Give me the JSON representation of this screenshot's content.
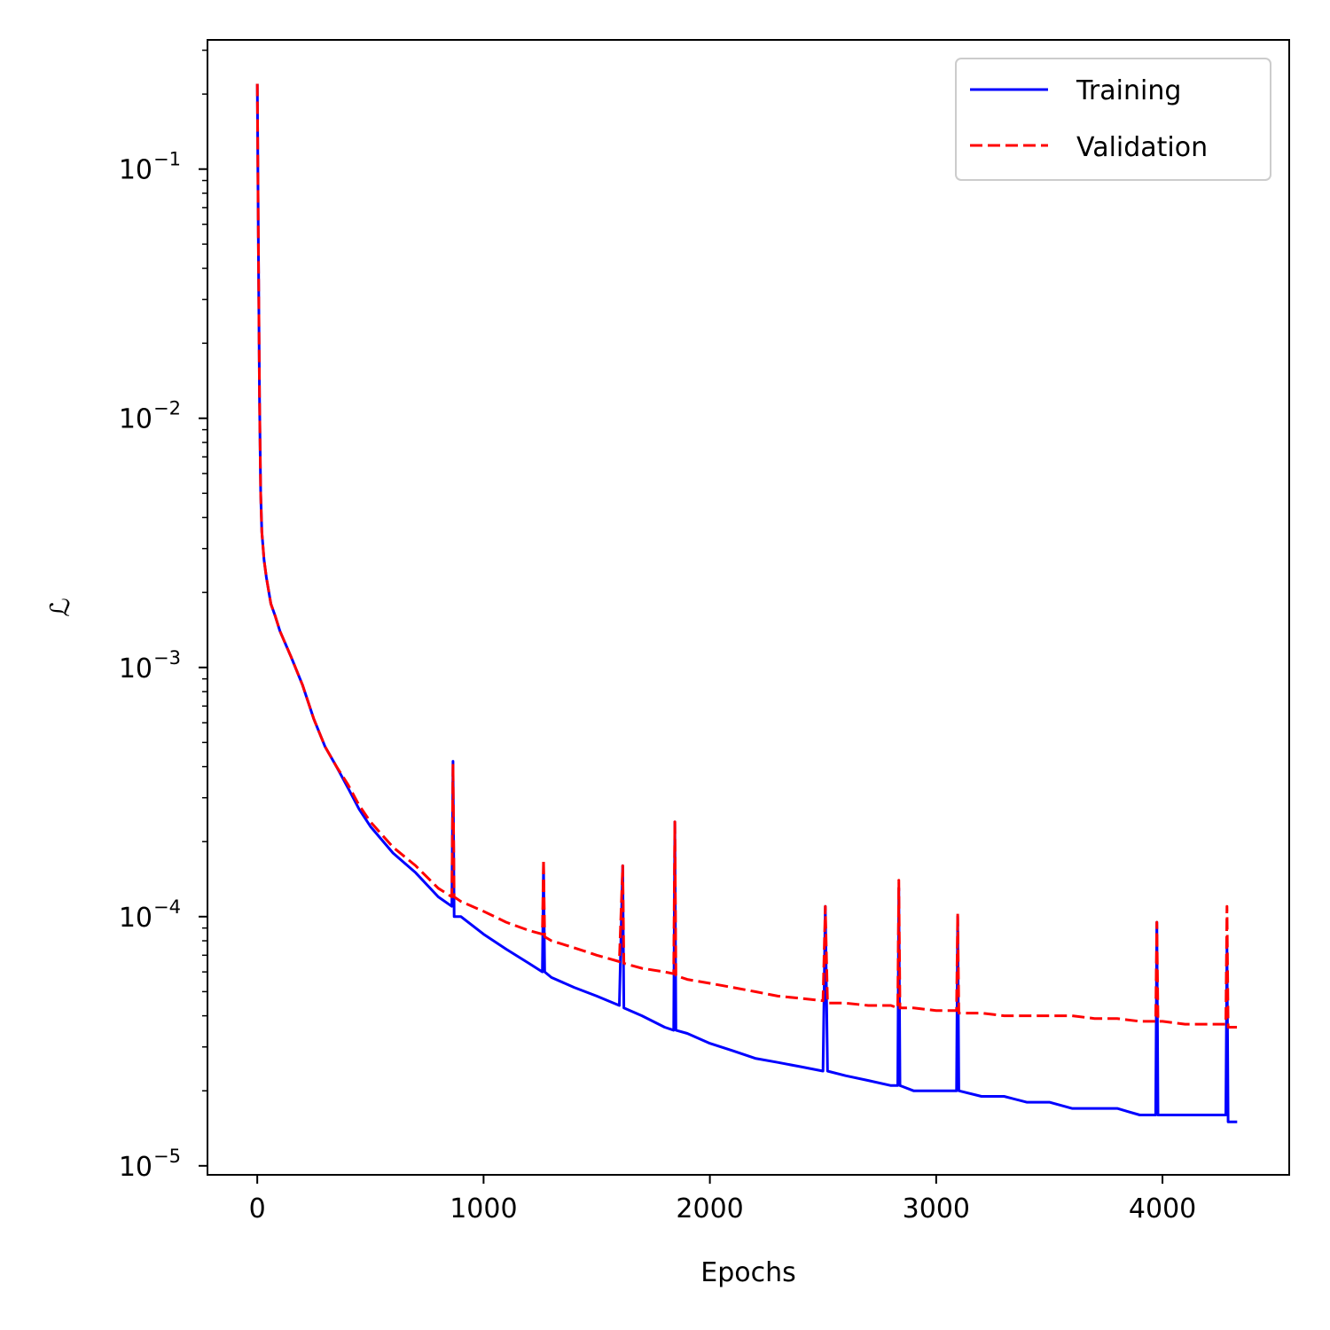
{
  "chart_data": {
    "type": "line",
    "title": "",
    "xlabel": "Epochs",
    "ylabel": "ℒ",
    "xlim": [
      -220,
      4560
    ],
    "ylim": [
      9.2e-06,
      0.33
    ],
    "yscale": "log",
    "grid": false,
    "legend_position": "top-right",
    "x_ticks": [
      {
        "value": 0,
        "label": "0"
      },
      {
        "value": 1000,
        "label": "1000"
      },
      {
        "value": 2000,
        "label": "2000"
      },
      {
        "value": 3000,
        "label": "3000"
      },
      {
        "value": 4000,
        "label": "4000"
      }
    ],
    "y_ticks": [
      {
        "value": 0.1,
        "base": "10",
        "exp": "−1"
      },
      {
        "value": 0.01,
        "base": "10",
        "exp": "−2"
      },
      {
        "value": 0.001,
        "base": "10",
        "exp": "−3"
      },
      {
        "value": 0.0001,
        "base": "10",
        "exp": "−4"
      },
      {
        "value": 1e-05,
        "base": "10",
        "exp": "−5"
      }
    ],
    "series": [
      {
        "name": "Training",
        "color": "#0000ff",
        "style": "solid",
        "x": [
          0,
          5,
          10,
          15,
          20,
          30,
          40,
          60,
          80,
          100,
          150,
          200,
          250,
          300,
          350,
          400,
          450,
          500,
          600,
          700,
          800,
          860,
          865,
          870,
          900,
          1000,
          1100,
          1200,
          1260,
          1265,
          1270,
          1300,
          1400,
          1500,
          1600,
          1615,
          1620,
          1700,
          1800,
          1840,
          1845,
          1850,
          1900,
          2000,
          2100,
          2200,
          2300,
          2400,
          2500,
          2510,
          2520,
          2600,
          2700,
          2800,
          2830,
          2835,
          2840,
          2900,
          3000,
          3090,
          3095,
          3100,
          3200,
          3300,
          3400,
          3500,
          3600,
          3700,
          3800,
          3900,
          3970,
          3975,
          3980,
          4000,
          4100,
          4200,
          4280,
          4285,
          4290,
          4330
        ],
        "y": [
          0.22,
          0.05,
          0.012,
          0.005,
          0.0035,
          0.0027,
          0.0023,
          0.0018,
          0.0016,
          0.0014,
          0.0011,
          0.00085,
          0.00062,
          0.00048,
          0.0004,
          0.00033,
          0.00027,
          0.00023,
          0.00018,
          0.00015,
          0.00012,
          0.00011,
          0.00042,
          0.0001,
          0.0001,
          8.5e-05,
          7.4e-05,
          6.5e-05,
          6e-05,
          0.00016,
          6e-05,
          5.7e-05,
          5.2e-05,
          4.8e-05,
          4.4e-05,
          0.00016,
          4.3e-05,
          4e-05,
          3.6e-05,
          3.5e-05,
          0.00024,
          3.5e-05,
          3.4e-05,
          3.1e-05,
          2.9e-05,
          2.7e-05,
          2.6e-05,
          2.5e-05,
          2.4e-05,
          0.00011,
          2.4e-05,
          2.3e-05,
          2.2e-05,
          2.1e-05,
          2.1e-05,
          0.00013,
          2.1e-05,
          2e-05,
          2e-05,
          2e-05,
          0.0001,
          2e-05,
          1.9e-05,
          1.9e-05,
          1.8e-05,
          1.8e-05,
          1.7e-05,
          1.7e-05,
          1.7e-05,
          1.6e-05,
          1.6e-05,
          9.5e-05,
          1.6e-05,
          1.6e-05,
          1.6e-05,
          1.6e-05,
          1.6e-05,
          7.5e-05,
          1.5e-05,
          1.5e-05
        ]
      },
      {
        "name": "Validation",
        "color": "#ff0000",
        "style": "dashed",
        "x": [
          0,
          5,
          10,
          15,
          20,
          30,
          40,
          60,
          80,
          100,
          150,
          200,
          250,
          300,
          350,
          400,
          450,
          500,
          600,
          700,
          800,
          860,
          865,
          870,
          900,
          1000,
          1100,
          1200,
          1260,
          1265,
          1270,
          1300,
          1400,
          1500,
          1600,
          1615,
          1620,
          1700,
          1800,
          1840,
          1845,
          1850,
          1900,
          2000,
          2100,
          2200,
          2300,
          2400,
          2500,
          2510,
          2520,
          2600,
          2700,
          2800,
          2830,
          2835,
          2840,
          2900,
          3000,
          3090,
          3095,
          3100,
          3200,
          3300,
          3400,
          3500,
          3600,
          3700,
          3800,
          3900,
          3970,
          3975,
          3980,
          4000,
          4100,
          4200,
          4280,
          4285,
          4290,
          4330
        ],
        "y": [
          0.22,
          0.05,
          0.012,
          0.005,
          0.0035,
          0.0027,
          0.0023,
          0.0018,
          0.0016,
          0.0014,
          0.0011,
          0.00085,
          0.00062,
          0.00048,
          0.0004,
          0.00034,
          0.00028,
          0.00024,
          0.00019,
          0.00016,
          0.00013,
          0.00012,
          0.00041,
          0.00012,
          0.000115,
          0.000105,
          9.5e-05,
          8.8e-05,
          8.5e-05,
          0.00017,
          8.3e-05,
          8e-05,
          7.5e-05,
          7e-05,
          6.6e-05,
          0.00016,
          6.5e-05,
          6.2e-05,
          6e-05,
          5.9e-05,
          0.00024,
          5.8e-05,
          5.6e-05,
          5.4e-05,
          5.2e-05,
          5e-05,
          4.8e-05,
          4.7e-05,
          4.6e-05,
          0.00011,
          4.5e-05,
          4.5e-05,
          4.4e-05,
          4.4e-05,
          4.3e-05,
          0.00014,
          4.3e-05,
          4.3e-05,
          4.2e-05,
          4.2e-05,
          0.000103,
          4.1e-05,
          4.1e-05,
          4e-05,
          4e-05,
          4e-05,
          4e-05,
          3.9e-05,
          3.9e-05,
          3.8e-05,
          3.8e-05,
          9.5e-05,
          3.8e-05,
          3.8e-05,
          3.7e-05,
          3.7e-05,
          3.7e-05,
          0.00011,
          3.6e-05,
          3.6e-05
        ]
      }
    ]
  }
}
